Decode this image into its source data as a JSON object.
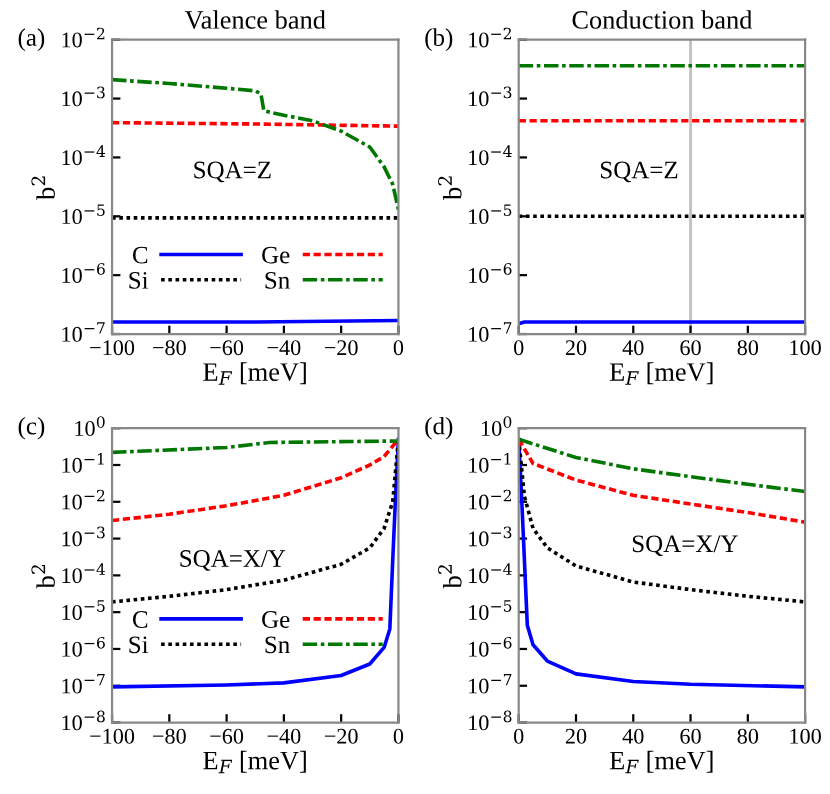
{
  "chart_data": [
    {
      "type": "line",
      "title": "Valence band",
      "xlabel": "E$_{F}$ [meV]",
      "ylabel": "b$^{2}$",
      "annotations": [
        "(a)",
        "SQA=Z"
      ],
      "log": "y",
      "legend": "bottom",
      "xlim": [
        -100,
        0
      ],
      "xticks": [
        {
          "value": -100,
          "label": "−100"
        },
        {
          "value": -80,
          "label": "−80"
        },
        {
          "value": -60,
          "label": "−60"
        },
        {
          "value": -40,
          "label": "−40"
        },
        {
          "value": -20,
          "label": "−20"
        },
        0
      ],
      "ylim": [
        1e-07,
        0.01
      ],
      "yticks": [
        {
          "value": 1e-07,
          "label": "10$^{−7}$"
        },
        {
          "value": 1e-06,
          "label": "10$^{−6}$"
        },
        {
          "value": 1e-05,
          "label": "10$^{−5}$"
        },
        {
          "value": 0.0001,
          "label": "10$^{−4}$"
        },
        {
          "value": 0.001,
          "label": "10$^{−3}$"
        },
        {
          "value": 0.01,
          "label": "10$^{−2}$"
        }
      ],
      "series": [
        {
          "name": "C",
          "color": "#0000ff",
          "line_style": "solid",
          "x": [
            -100,
            -50,
            0
          ],
          "values": [
            1.6e-07,
            1.6e-07,
            1.7e-07
          ]
        },
        {
          "name": "Si",
          "color": "#000000",
          "line_style": "dotted",
          "x": [
            -100,
            -50,
            0
          ],
          "values": [
            9.4e-06,
            9.4e-06,
            9.4e-06
          ]
        },
        {
          "name": "Ge",
          "color": "#ff0000",
          "line_style": "dashed",
          "x": [
            -100,
            -50,
            0
          ],
          "values": [
            0.00039,
            0.00037,
            0.00034
          ]
        },
        {
          "name": "Sn",
          "color": "#007700",
          "line_style": "dashdot",
          "x": [
            -100,
            -80,
            -60,
            -50,
            -48,
            -47,
            -40,
            -30,
            -20,
            -10,
            -5,
            -2,
            0
          ],
          "values": [
            0.0021,
            0.0018,
            0.0015,
            0.00135,
            0.0012,
            0.00062,
            0.00052,
            0.00042,
            0.00028,
            0.00015,
            6.9e-05,
            3.5e-05,
            1.3e-05
          ]
        }
      ]
    },
    {
      "type": "line",
      "title": "Conduction band",
      "xlabel": "E$_{F}$ [meV]",
      "ylabel": "b$^{2}$",
      "annotations": [
        "(b)",
        "SQA=Z"
      ],
      "log": "y",
      "xlim": [
        0,
        100
      ],
      "xticks": [
        0,
        20,
        40,
        60,
        80,
        100
      ],
      "ylim": [
        1e-07,
        0.01
      ],
      "yticks": [
        {
          "value": 1e-07,
          "label": "10$^{−7}$"
        },
        {
          "value": 1e-06,
          "label": "10$^{−6}$"
        },
        {
          "value": 1e-05,
          "label": "10$^{−5}$"
        },
        {
          "value": 0.0001,
          "label": "10$^{−4}$"
        },
        {
          "value": 0.001,
          "label": "10$^{−3}$"
        },
        {
          "value": 0.01,
          "label": "10$^{−2}$"
        }
      ],
      "ref_lines": [
        {
          "axis": "x",
          "value": 60,
          "color": "#c0c0c0"
        }
      ],
      "series": [
        {
          "color": "#0000ff",
          "line_style": "solid",
          "x": [
            0,
            2,
            50,
            100
          ],
          "values": [
            1.5e-07,
            1.6e-07,
            1.6e-07,
            1.6e-07
          ]
        },
        {
          "color": "#000000",
          "line_style": "dotted",
          "x": [
            0,
            50,
            100
          ],
          "values": [
            1e-05,
            1e-05,
            1e-05
          ]
        },
        {
          "color": "#ff0000",
          "line_style": "dashed",
          "x": [
            0,
            50,
            100
          ],
          "values": [
            0.00042,
            0.00042,
            0.00042
          ]
        },
        {
          "color": "#007700",
          "line_style": "dashdot",
          "x": [
            0,
            50,
            100
          ],
          "values": [
            0.0036,
            0.0036,
            0.0036
          ]
        }
      ]
    },
    {
      "type": "line",
      "xlabel": "E$_{F}$ [meV]",
      "ylabel": "b$^{2}$",
      "annotations": [
        "(c)",
        "SQA=X/Y"
      ],
      "log": "y",
      "legend": "center",
      "xlim": [
        -100,
        0
      ],
      "xticks": [
        {
          "value": -100,
          "label": "−100"
        },
        {
          "value": -80,
          "label": "−80"
        },
        {
          "value": -60,
          "label": "−60"
        },
        {
          "value": -40,
          "label": "−40"
        },
        {
          "value": -20,
          "label": "−20"
        },
        0
      ],
      "ylim": [
        1e-08,
        1
      ],
      "yticks": [
        {
          "value": 1e-08,
          "label": "10$^{−8}$"
        },
        {
          "value": 1e-07,
          "label": "10$^{−7}$"
        },
        {
          "value": 1e-06,
          "label": "10$^{−6}$"
        },
        {
          "value": 1e-05,
          "label": "10$^{−5}$"
        },
        {
          "value": 0.0001,
          "label": "10$^{−4}$"
        },
        {
          "value": 0.001,
          "label": "10$^{−3}$"
        },
        {
          "value": 0.01,
          "label": "10$^{−2}$"
        },
        {
          "value": 0.1,
          "label": "10$^{−1}$"
        },
        {
          "value": 1,
          "label": "10$^{0}$"
        }
      ],
      "series": [
        {
          "name": "C",
          "color": "#0000ff",
          "line_style": "solid",
          "x": [
            -100,
            -60,
            -40,
            -20,
            -10,
            -5,
            -3,
            -2,
            -1,
            0
          ],
          "values": [
            9.3e-08,
            1.05e-07,
            1.2e-07,
            1.9e-07,
            3.9e-07,
            1.1e-06,
            3.5e-06,
            0.00025,
            0.014,
            0.5
          ]
        },
        {
          "name": "Si",
          "color": "#000000",
          "line_style": "dotted",
          "x": [
            -100,
            -80,
            -60,
            -40,
            -20,
            -10,
            -5,
            -2,
            0
          ],
          "values": [
            1.9e-05,
            2.7e-05,
            4.1e-05,
            7.4e-05,
            0.0002,
            0.00056,
            0.0019,
            0.01,
            0.5
          ]
        },
        {
          "name": "Ge",
          "color": "#ff0000",
          "line_style": "dashed",
          "x": [
            -100,
            -80,
            -60,
            -40,
            -20,
            -10,
            -5,
            0
          ],
          "values": [
            0.0031,
            0.0046,
            0.0078,
            0.015,
            0.045,
            0.1,
            0.17,
            0.5
          ]
        },
        {
          "name": "Sn",
          "color": "#007700",
          "line_style": "dashdot",
          "x": [
            -100,
            -60,
            -45,
            0
          ],
          "values": [
            0.22,
            0.3,
            0.41,
            0.45
          ]
        }
      ]
    },
    {
      "type": "line",
      "xlabel": "E$_{F}$ [meV]",
      "ylabel": "b$^{2}$",
      "annotations": [
        "(d)",
        "SQA=X/Y"
      ],
      "log": "y",
      "xlim": [
        0,
        100
      ],
      "xticks": [
        0,
        20,
        40,
        60,
        80,
        100
      ],
      "ylim": [
        1e-08,
        1
      ],
      "yticks": [
        {
          "value": 1e-08,
          "label": "10$^{−8}$"
        },
        {
          "value": 1e-07,
          "label": "10$^{−7}$"
        },
        {
          "value": 1e-06,
          "label": "10$^{−6}$"
        },
        {
          "value": 1e-05,
          "label": "10$^{−5}$"
        },
        {
          "value": 0.0001,
          "label": "10$^{−4}$"
        },
        {
          "value": 0.001,
          "label": "10$^{−3}$"
        },
        {
          "value": 0.01,
          "label": "10$^{−2}$"
        },
        {
          "value": 0.1,
          "label": "10$^{−1}$"
        },
        {
          "value": 1,
          "label": "10$^{0}$"
        }
      ],
      "series": [
        {
          "color": "#0000ff",
          "line_style": "solid",
          "x": [
            0,
            1,
            2,
            3,
            5,
            10,
            20,
            40,
            60,
            100
          ],
          "values": [
            0.5,
            0.014,
            0.00025,
            4.4e-06,
            1.3e-06,
            4.7e-07,
            2.1e-07,
            1.3e-07,
            1.1e-07,
            9.3e-08
          ]
        },
        {
          "color": "#000000",
          "line_style": "dotted",
          "x": [
            0,
            2,
            5,
            10,
            20,
            40,
            60,
            80,
            100
          ],
          "values": [
            0.5,
            0.014,
            0.0019,
            0.00056,
            0.00018,
            6.6e-05,
            4.1e-05,
            2.7e-05,
            1.9e-05
          ]
        },
        {
          "color": "#ff0000",
          "line_style": "dashed",
          "x": [
            0,
            5,
            20,
            40,
            60,
            80,
            100
          ],
          "values": [
            0.5,
            0.11,
            0.039,
            0.015,
            0.0087,
            0.0051,
            0.0028
          ]
        },
        {
          "color": "#007700",
          "line_style": "dashdot",
          "x": [
            0,
            20,
            40,
            60,
            80,
            100
          ],
          "values": [
            0.5,
            0.16,
            0.079,
            0.048,
            0.03,
            0.019
          ]
        }
      ]
    }
  ]
}
